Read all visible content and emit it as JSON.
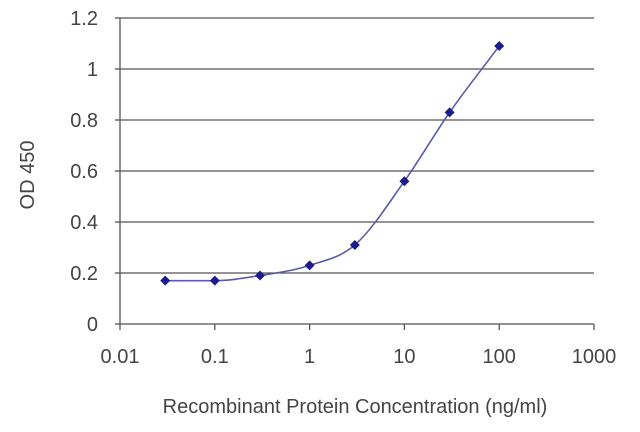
{
  "chart_data": {
    "type": "line",
    "title": "",
    "xlabel": "Recombinant Protein Concentration (ng/ml)",
    "ylabel": "OD 450",
    "x_scale": "log",
    "xlim": [
      0.01,
      1000
    ],
    "ylim": [
      0,
      1.2
    ],
    "x_ticks": [
      "0.01",
      "0.1",
      "1",
      "10",
      "100",
      "1000"
    ],
    "x_tick_values": [
      0.01,
      0.1,
      1,
      10,
      100,
      1000
    ],
    "y_ticks": [
      "0",
      "0.2",
      "0.4",
      "0.6",
      "0.8",
      "1",
      "1.2"
    ],
    "y_tick_values": [
      0,
      0.2,
      0.4,
      0.6,
      0.8,
      1,
      1.2
    ],
    "grid": "horizontal",
    "legend": "none",
    "series": [
      {
        "color": "#1c1c8c",
        "marker": "diamond",
        "x": [
          0.03,
          0.1,
          0.3,
          1,
          3,
          10,
          30,
          100
        ],
        "y": [
          0.17,
          0.17,
          0.19,
          0.23,
          0.31,
          0.56,
          0.83,
          1.09
        ]
      }
    ],
    "curve_color": "#5a5aa8",
    "grid_color": "#555555",
    "axis_color": "#555555"
  }
}
